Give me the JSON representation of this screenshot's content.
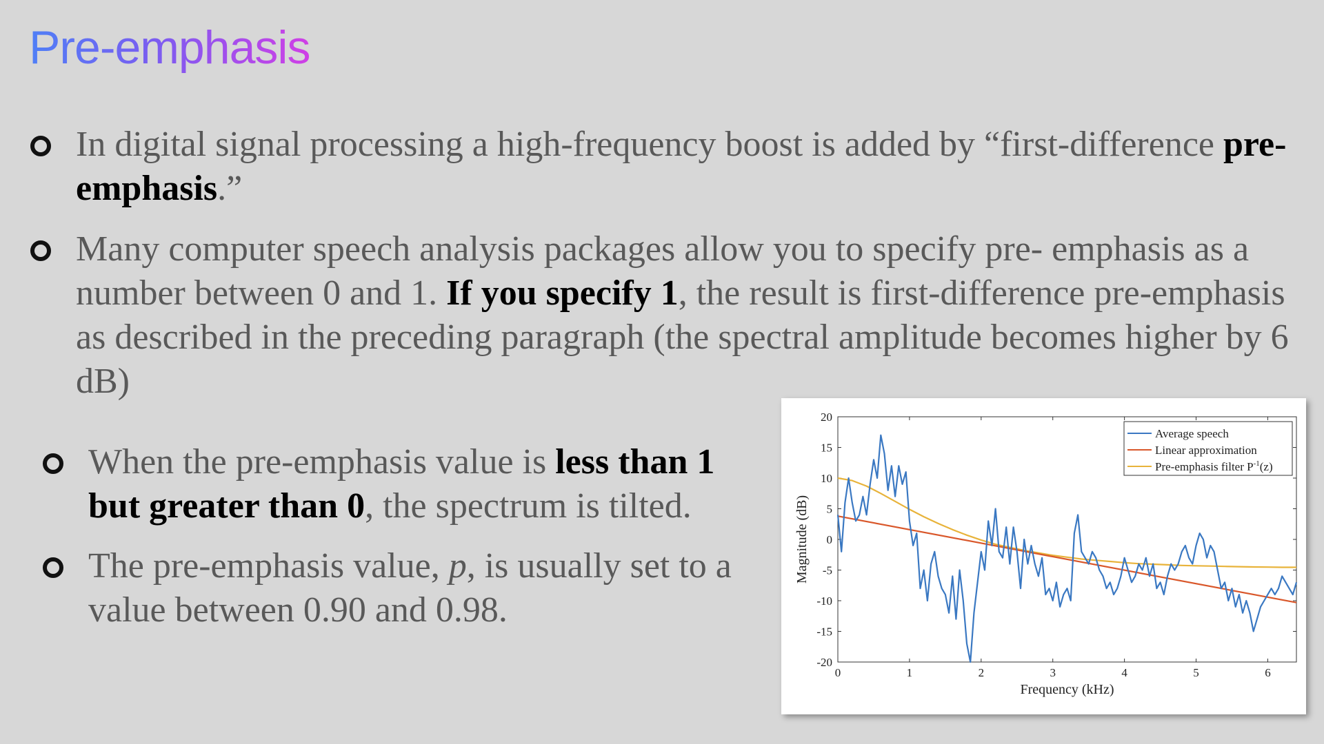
{
  "slide": {
    "title": "Pre-emphasis",
    "bullet1": {
      "text_a": "In digital signal processing a high-frequency boost is added by “first-difference ",
      "bold_a": "pre-emphasis",
      "text_b": ".”"
    },
    "bullet2": {
      "text_a": "Many computer speech analysis packages allow you to specify pre- emphasis as a number between 0 and 1. ",
      "bold_a": "If you specify 1",
      "text_b": ", the result is first-difference pre-emphasis as described in the preceding paragraph (the spectral amplitude becomes higher by 6 dB)"
    },
    "bullet3": {
      "text_a": "When the pre-emphasis value is ",
      "bold_a": "less than 1 but greater than 0",
      "text_b": ", the spectrum is tilted."
    },
    "bullet4": {
      "text_a": "The pre-emphasis value, ",
      "italic_a": "p",
      "text_b": ", is usually set to a value between 0.90 and 0.98."
    }
  },
  "chart_data": {
    "type": "line",
    "xlabel": "Frequency (kHz)",
    "ylabel": "Magnitude (dB)",
    "xlim": [
      0,
      6.4
    ],
    "ylim": [
      -20,
      20
    ],
    "xticks": [
      "0",
      "1",
      "2",
      "3",
      "4",
      "5",
      "6"
    ],
    "yticks": [
      "20",
      "15",
      "10",
      "5",
      "0",
      "-5",
      "-10",
      "-15",
      "-20"
    ],
    "legend_position": "top-right",
    "legend_suffix_superscript": "-1",
    "legend_suffix_tail": "(z)",
    "series": [
      {
        "name": "Average speech",
        "color": "#3a78c2",
        "x": [
          0,
          0.05,
          0.1,
          0.15,
          0.2,
          0.25,
          0.3,
          0.35,
          0.4,
          0.45,
          0.5,
          0.55,
          0.6,
          0.65,
          0.7,
          0.75,
          0.8,
          0.85,
          0.9,
          0.95,
          1.0,
          1.05,
          1.1,
          1.15,
          1.2,
          1.25,
          1.3,
          1.35,
          1.4,
          1.45,
          1.5,
          1.55,
          1.6,
          1.65,
          1.7,
          1.75,
          1.8,
          1.85,
          1.9,
          1.95,
          2.0,
          2.05,
          2.1,
          2.15,
          2.2,
          2.25,
          2.3,
          2.35,
          2.4,
          2.45,
          2.5,
          2.55,
          2.6,
          2.65,
          2.7,
          2.75,
          2.8,
          2.85,
          2.9,
          2.95,
          3.0,
          3.05,
          3.1,
          3.15,
          3.2,
          3.25,
          3.3,
          3.35,
          3.4,
          3.45,
          3.5,
          3.55,
          3.6,
          3.65,
          3.7,
          3.75,
          3.8,
          3.85,
          3.9,
          3.95,
          4.0,
          4.05,
          4.1,
          4.15,
          4.2,
          4.25,
          4.3,
          4.35,
          4.4,
          4.45,
          4.5,
          4.55,
          4.6,
          4.65,
          4.7,
          4.75,
          4.8,
          4.85,
          4.9,
          4.95,
          5.0,
          5.05,
          5.1,
          5.15,
          5.2,
          5.25,
          5.3,
          5.35,
          5.4,
          5.45,
          5.5,
          5.55,
          5.6,
          5.65,
          5.7,
          5.75,
          5.8,
          5.85,
          5.9,
          5.95,
          6.0,
          6.05,
          6.1,
          6.15,
          6.2,
          6.25,
          6.3,
          6.35,
          6.4
        ],
        "values": [
          4,
          -2,
          6,
          10,
          6,
          3,
          4,
          7,
          4,
          9,
          13,
          10,
          17,
          14,
          8,
          12,
          7,
          12,
          9,
          11,
          3,
          -1,
          1,
          -8,
          -5,
          -10,
          -4,
          -2,
          -6,
          -8,
          -9,
          -12,
          -6,
          -13,
          -5,
          -10,
          -17,
          -20,
          -12,
          -7,
          -2,
          -5,
          3,
          -1,
          5,
          -2,
          -3,
          2,
          -4,
          2,
          -2,
          -8,
          0,
          -4,
          -1,
          -4,
          -6,
          -3,
          -9,
          -8,
          -10,
          -7,
          -11,
          -9,
          -8,
          -10,
          1,
          4,
          -2,
          -3,
          -4,
          -2,
          -3,
          -5,
          -6,
          -8,
          -7,
          -9,
          -8,
          -6,
          -3,
          -5,
          -7,
          -6,
          -4,
          -5,
          -3,
          -6,
          -4,
          -8,
          -7,
          -9,
          -6,
          -4,
          -5,
          -4,
          -2,
          -1,
          -3,
          -4,
          -1,
          1,
          0,
          -3,
          -1,
          -2,
          -5,
          -8,
          -7,
          -10,
          -8,
          -11,
          -9,
          -12,
          -10,
          -12,
          -15,
          -13,
          -11,
          -10,
          -9,
          -8,
          -9,
          -8,
          -6,
          -7,
          -8,
          -9,
          -7
        ]
      },
      {
        "name": "Linear approximation",
        "color": "#d9572a",
        "x": [
          0,
          6.4
        ],
        "values": [
          3.8,
          -10.3
        ]
      },
      {
        "name": "Pre-emphasis filter P",
        "color": "#e8b33a",
        "x": [
          0,
          0.2,
          0.4,
          0.6,
          0.8,
          1.0,
          1.2,
          1.4,
          1.6,
          1.8,
          2.0,
          2.2,
          2.4,
          2.6,
          2.8,
          3.0,
          3.2,
          3.4,
          3.6,
          3.8,
          4.0,
          4.2,
          4.4,
          4.6,
          4.8,
          5.0,
          5.2,
          5.4,
          5.6,
          5.8,
          6.0,
          6.2,
          6.4
        ],
        "values": [
          10,
          9.6,
          8.7,
          7.5,
          6.2,
          4.9,
          3.7,
          2.6,
          1.6,
          0.7,
          -0.1,
          -0.8,
          -1.3,
          -1.8,
          -2.2,
          -2.6,
          -2.9,
          -3.2,
          -3.4,
          -3.6,
          -3.8,
          -3.95,
          -4.05,
          -4.15,
          -4.25,
          -4.3,
          -4.35,
          -4.4,
          -4.45,
          -4.5,
          -4.52,
          -4.55,
          -4.55
        ]
      }
    ]
  }
}
